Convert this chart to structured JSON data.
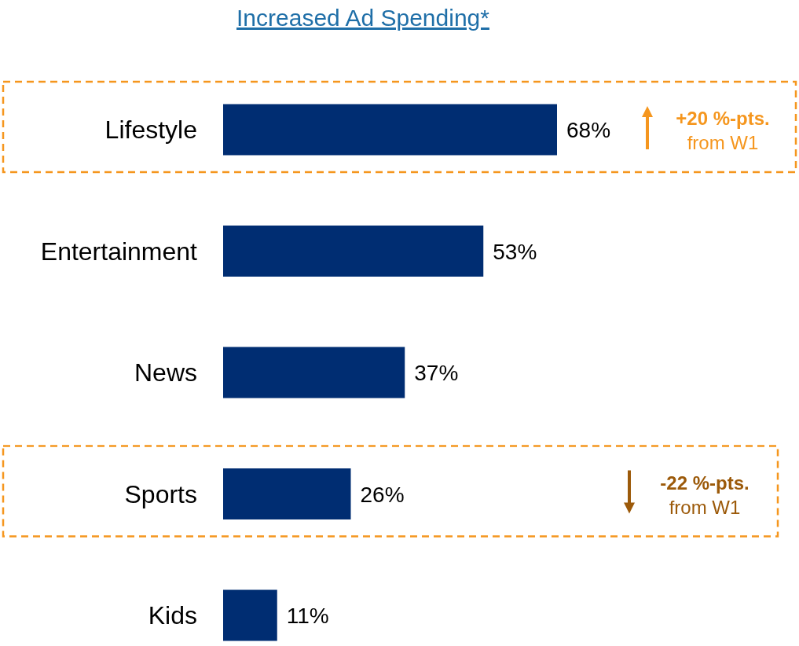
{
  "chart_data": {
    "type": "bar",
    "orientation": "horizontal",
    "title": "Increased Ad Spending*",
    "categories": [
      "Lifestyle",
      "Entertainment",
      "News",
      "Sports",
      "Kids"
    ],
    "values": [
      68,
      53,
      37,
      26,
      11
    ],
    "color": "#002d72",
    "data_labels": true,
    "value_labels": [
      "68%",
      "53%",
      "37%",
      "26%",
      "11%"
    ],
    "annotations": [
      "+20 %-pts.\nfrom W1",
      "-22 %-pts.\nfrom W1"
    ]
  }
}
